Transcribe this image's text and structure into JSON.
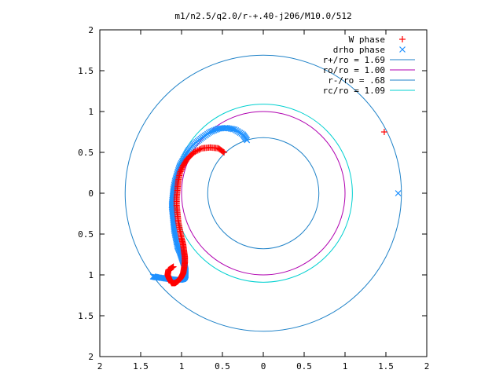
{
  "chart_data": {
    "type": "scatter",
    "title": "m1/n2.5/q2.0/r-+.40-j206/M10.0/512",
    "xlabel": "",
    "ylabel": "",
    "xlim": [
      -2,
      2
    ],
    "ylim": [
      -2,
      2
    ],
    "x_tick_labels": [
      "2",
      "1.5",
      "1",
      "0.5",
      "0",
      "0.5",
      "1",
      "1.5",
      "2"
    ],
    "x_tick_values": [
      -2,
      -1.5,
      -1,
      -0.5,
      0,
      0.5,
      1,
      1.5,
      2
    ],
    "y_tick_labels": [
      "2",
      "1.5",
      "1",
      "0.5",
      "0",
      "0.5",
      "1",
      "1.5",
      "2"
    ],
    "y_tick_values": [
      2,
      1.5,
      1,
      0.5,
      0,
      -0.5,
      -1,
      -1.5,
      -2
    ],
    "grid": false,
    "legend_position": "top-right",
    "legend": [
      {
        "label": "W phase",
        "color": "#ff0000",
        "marker": "plus"
      },
      {
        "label": "drho phase",
        "color": "#1e90ff",
        "marker": "cross"
      },
      {
        "label": "r+/ro = 1.69",
        "color": "#1f82c8",
        "marker": "line"
      },
      {
        "label": "ro/ro = 1.00",
        "color": "#b000b0",
        "marker": "line"
      },
      {
        "label": "r-/ro = .68",
        "color": "#1f82c8",
        "marker": "line"
      },
      {
        "label": "rc/ro = 1.09",
        "color": "#00d0d0",
        "marker": "line"
      }
    ],
    "circles": [
      {
        "name": "r+/ro = 1.69",
        "radius": 1.69,
        "color": "#1f82c8"
      },
      {
        "name": "ro/ro = 1.00",
        "radius": 1.0,
        "color": "#b000b0"
      },
      {
        "name": "r-/ro = .68",
        "radius": 0.68,
        "color": "#1f82c8"
      },
      {
        "name": "rc/ro = 1.09",
        "radius": 1.09,
        "color": "#00d0d0"
      }
    ],
    "series": [
      {
        "name": "W phase",
        "color": "#ff0000",
        "marker": "plus",
        "x": [
          -0.48,
          -0.55,
          -0.65,
          -0.75,
          -0.85,
          -0.93,
          -0.98,
          -1.02,
          -1.04,
          -1.05,
          -1.06,
          -1.06,
          -1.05,
          -1.04,
          -1.02,
          -1.0,
          -0.98,
          -0.97,
          -0.96,
          -0.96,
          -0.97,
          -0.98,
          -1.0,
          -1.02,
          -1.05,
          -1.08,
          -1.12,
          -1.15,
          -1.17,
          -1.16,
          -1.1,
          1.48
        ],
        "y": [
          0.5,
          0.55,
          0.56,
          0.55,
          0.5,
          0.42,
          0.34,
          0.25,
          0.15,
          0.05,
          -0.05,
          -0.15,
          -0.25,
          -0.35,
          -0.45,
          -0.55,
          -0.63,
          -0.71,
          -0.78,
          -0.85,
          -0.92,
          -0.98,
          -1.02,
          -1.05,
          -1.08,
          -1.1,
          -1.1,
          -1.05,
          -1.0,
          -0.94,
          -0.9,
          0.75
        ]
      },
      {
        "name": "drho phase",
        "color": "#1e90ff",
        "marker": "cross",
        "x": [
          -0.2,
          -0.25,
          -0.35,
          -0.45,
          -0.55,
          -0.65,
          -0.75,
          -0.85,
          -0.92,
          -0.97,
          -1.02,
          -1.05,
          -1.08,
          -1.1,
          -1.11,
          -1.12,
          -1.11,
          -1.1,
          -1.09,
          -1.07,
          -1.05,
          -1.02,
          -1.0,
          -0.98,
          -0.96,
          -0.95,
          -0.95,
          -0.96,
          -0.98,
          -1.02,
          -1.08,
          -1.15,
          -1.22,
          -1.3,
          -1.35,
          1.65
        ],
        "y": [
          0.65,
          0.72,
          0.78,
          0.8,
          0.79,
          0.75,
          0.68,
          0.6,
          0.52,
          0.43,
          0.34,
          0.25,
          0.15,
          0.05,
          -0.05,
          -0.15,
          -0.25,
          -0.35,
          -0.45,
          -0.55,
          -0.65,
          -0.72,
          -0.78,
          -0.84,
          -0.9,
          -0.95,
          -1.0,
          -1.03,
          -1.05,
          -1.06,
          -1.06,
          -1.05,
          -1.04,
          -1.03,
          -1.02,
          0.0
        ]
      }
    ]
  }
}
